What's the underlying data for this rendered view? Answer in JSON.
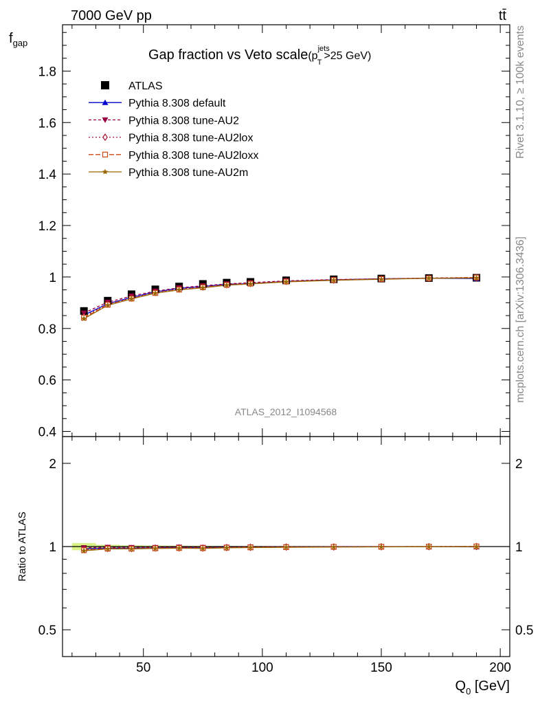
{
  "header": {
    "beam_label": "7000 GeV pp",
    "process_label": "tt̄",
    "rivet_label": "Rivet 3.1.10, ≥ 100k events",
    "mcplots_label": "mcplots.cern.ch [arXiv:1306.3436]",
    "analysis_label": "ATLAS_2012_I1094568"
  },
  "chart_data": [
    {
      "type": "line",
      "title": "Gap fraction vs Veto scale",
      "title_suffix": {
        "pre": "(p",
        "sup": "jets",
        "sub": "T",
        "post": ">25 GeV)"
      },
      "ylabel": {
        "main": "f",
        "sub": "gap"
      },
      "xlim": [
        16,
        204
      ],
      "ylim": [
        0.38,
        1.98
      ],
      "yticks": [
        0.4,
        0.6,
        0.8,
        1,
        1.2,
        1.4,
        1.6,
        1.8
      ],
      "ytick_labels": [
        "0.4",
        "0.6",
        "0.8",
        "1",
        "1.2",
        "1.4",
        "1.6",
        "1.8"
      ],
      "x": [
        25,
        35,
        45,
        55,
        65,
        75,
        85,
        95,
        110,
        130,
        150,
        170,
        190
      ],
      "series": [
        {
          "name": "ATLAS",
          "color": "#000000",
          "marker": "square",
          "dash": "none",
          "values": [
            0.868,
            0.908,
            0.933,
            0.952,
            0.963,
            0.973,
            0.978,
            0.981,
            0.987,
            0.991,
            0.994,
            0.996,
            0.997
          ]
        },
        {
          "name": "Pythia 8.308 default",
          "color": "#0000cc",
          "marker": "triangle-up",
          "dash": "none",
          "values": [
            0.852,
            0.896,
            0.921,
            0.942,
            0.956,
            0.963,
            0.972,
            0.974,
            0.983,
            0.989,
            0.993,
            0.995,
            0.994
          ]
        },
        {
          "name": "Pythia 8.308 tune-AU2",
          "color": "#990044",
          "marker": "triangle-down",
          "dash": "4,3",
          "values": [
            0.86,
            0.902,
            0.926,
            0.945,
            0.958,
            0.966,
            0.973,
            0.978,
            0.985,
            0.99,
            0.993,
            0.996,
            0.998
          ]
        },
        {
          "name": "Pythia 8.308 tune-AU2lox",
          "color": "#aa1133",
          "marker": "diamond-open",
          "dash": "2,3",
          "values": [
            0.846,
            0.895,
            0.918,
            0.94,
            0.953,
            0.961,
            0.97,
            0.975,
            0.983,
            0.988,
            0.992,
            0.995,
            0.997
          ]
        },
        {
          "name": "Pythia 8.308 tune-AU2loxx",
          "color": "#cc4411",
          "marker": "square-open",
          "dash": "7,3",
          "values": [
            0.842,
            0.892,
            0.916,
            0.938,
            0.951,
            0.96,
            0.969,
            0.974,
            0.982,
            0.988,
            0.992,
            0.995,
            0.998
          ]
        },
        {
          "name": "Pythia 8.308 tune-AU2m",
          "color": "#996600",
          "marker": "star",
          "dash": "none",
          "values": [
            0.838,
            0.89,
            0.915,
            0.937,
            0.95,
            0.958,
            0.968,
            0.973,
            0.981,
            0.987,
            0.991,
            0.995,
            0.996
          ]
        }
      ]
    },
    {
      "type": "line",
      "title": "",
      "ylabel": "Ratio to ATLAS",
      "xlabel": {
        "main": "Q",
        "sub": "0",
        "post": " [GeV]"
      },
      "xlim": [
        16,
        204
      ],
      "xticks": [
        50,
        100,
        150,
        200
      ],
      "xtick_labels": [
        "50",
        "100",
        "150",
        "200"
      ],
      "ylim": [
        0.4,
        2.5
      ],
      "yscale": "log",
      "yticks": [
        0.5,
        1,
        2
      ],
      "ytick_labels": [
        "0.5",
        "1",
        "2"
      ],
      "band": {
        "color": "#ccee66",
        "lower": [
          0.97,
          0.985,
          0.99,
          0.992,
          0.993,
          0.994,
          0.995,
          0.996,
          0.997,
          0.998,
          0.998,
          0.999,
          0.999
        ],
        "upper": [
          1.03,
          1.015,
          1.01,
          1.008,
          1.007,
          1.006,
          1.005,
          1.004,
          1.003,
          1.002,
          1.002,
          1.001,
          1.001
        ]
      }
    }
  ]
}
